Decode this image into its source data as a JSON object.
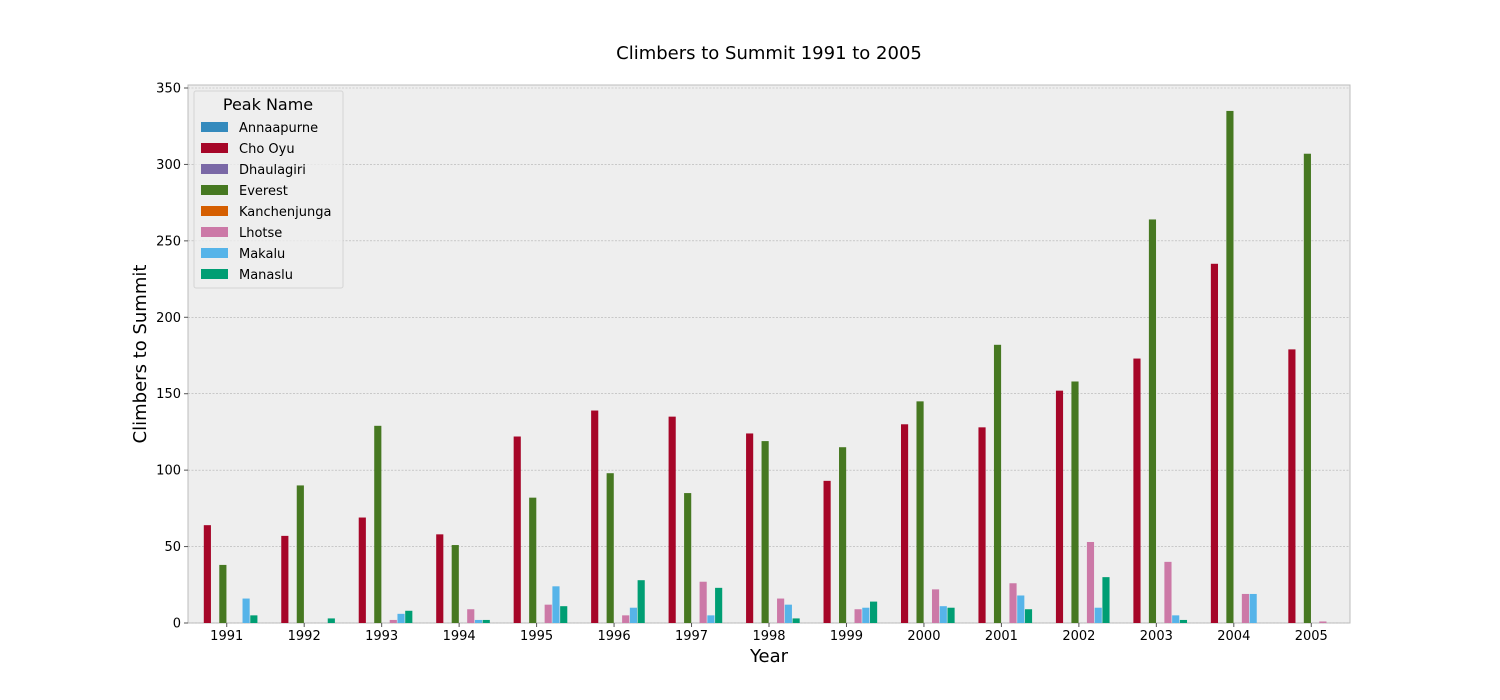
{
  "chart_data": {
    "type": "bar",
    "title": "Climbers to Summit 1991 to 2005",
    "xlabel": "Year",
    "ylabel": "Climbers to Summit",
    "ylim": [
      0,
      350
    ],
    "yticks": [
      0,
      50,
      100,
      150,
      200,
      250,
      300,
      350
    ],
    "grid": true,
    "legend_title": "Peak Name",
    "legend_position": "top-left",
    "categories": [
      "1991",
      "1992",
      "1993",
      "1994",
      "1995",
      "1996",
      "1997",
      "1998",
      "1999",
      "2000",
      "2001",
      "2002",
      "2003",
      "2004",
      "2005"
    ],
    "series": [
      {
        "name": "Annaapurne",
        "color": "#348abd",
        "values": [
          0,
          0,
          0,
          0,
          0,
          0,
          0,
          0,
          0,
          0,
          0,
          0,
          0,
          0,
          0
        ]
      },
      {
        "name": "Cho Oyu",
        "color": "#a60628",
        "values": [
          64,
          57,
          69,
          58,
          122,
          139,
          135,
          124,
          93,
          130,
          128,
          152,
          173,
          235,
          179
        ]
      },
      {
        "name": "Dhaulagiri",
        "color": "#7a68a6",
        "values": [
          0,
          0,
          0,
          0,
          0,
          0,
          0,
          0,
          0,
          0,
          0,
          0,
          0,
          0,
          0
        ]
      },
      {
        "name": "Everest",
        "color": "#467821",
        "values": [
          38,
          90,
          129,
          51,
          82,
          98,
          85,
          119,
          115,
          145,
          182,
          158,
          264,
          335,
          307
        ]
      },
      {
        "name": "Kanchenjunga",
        "color": "#d55e00",
        "values": [
          0,
          0,
          0,
          0,
          0,
          0,
          0,
          0,
          0,
          0,
          0,
          0,
          0,
          0,
          0
        ]
      },
      {
        "name": "Lhotse",
        "color": "#cc79a7",
        "values": [
          0,
          0,
          2,
          9,
          12,
          5,
          27,
          16,
          9,
          22,
          26,
          53,
          40,
          19,
          1
        ]
      },
      {
        "name": "Makalu",
        "color": "#56b4e9",
        "values": [
          16,
          0,
          6,
          2,
          24,
          10,
          5,
          12,
          10,
          11,
          18,
          10,
          5,
          19,
          0
        ]
      },
      {
        "name": "Manaslu",
        "color": "#009e73",
        "values": [
          5,
          3,
          8,
          2,
          11,
          28,
          23,
          3,
          14,
          10,
          9,
          30,
          2,
          0,
          0
        ]
      }
    ]
  }
}
